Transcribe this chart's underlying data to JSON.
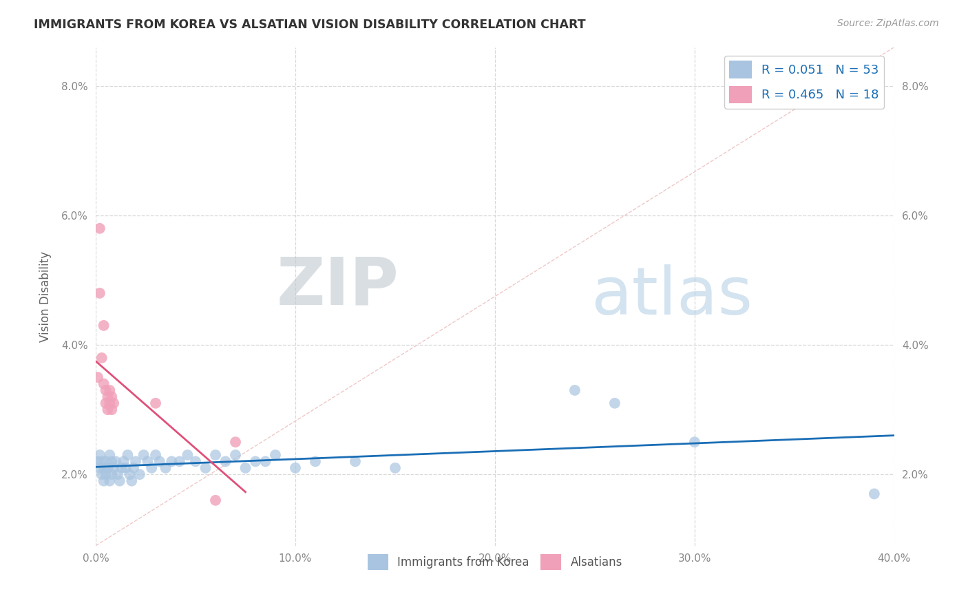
{
  "title": "IMMIGRANTS FROM KOREA VS ALSATIAN VISION DISABILITY CORRELATION CHART",
  "source": "Source: ZipAtlas.com",
  "ylabel": "Vision Disability",
  "xlim": [
    0.0,
    0.4
  ],
  "ylim": [
    0.009,
    0.086
  ],
  "xticks": [
    0.0,
    0.1,
    0.2,
    0.3,
    0.4
  ],
  "yticks": [
    0.02,
    0.04,
    0.06,
    0.08
  ],
  "xticklabels": [
    "0.0%",
    "10.0%",
    "20.0%",
    "30.0%",
    "40.0%"
  ],
  "yticklabels": [
    "2.0%",
    "4.0%",
    "6.0%",
    "8.0%"
  ],
  "blue_points": [
    [
      0.001,
      0.022
    ],
    [
      0.002,
      0.021
    ],
    [
      0.002,
      0.023
    ],
    [
      0.003,
      0.02
    ],
    [
      0.003,
      0.022
    ],
    [
      0.004,
      0.019
    ],
    [
      0.004,
      0.021
    ],
    [
      0.005,
      0.022
    ],
    [
      0.005,
      0.02
    ],
    [
      0.006,
      0.021
    ],
    [
      0.007,
      0.023
    ],
    [
      0.007,
      0.019
    ],
    [
      0.008,
      0.02
    ],
    [
      0.008,
      0.022
    ],
    [
      0.009,
      0.021
    ],
    [
      0.01,
      0.022
    ],
    [
      0.011,
      0.02
    ],
    [
      0.012,
      0.019
    ],
    [
      0.013,
      0.021
    ],
    [
      0.014,
      0.022
    ],
    [
      0.015,
      0.021
    ],
    [
      0.016,
      0.023
    ],
    [
      0.017,
      0.02
    ],
    [
      0.018,
      0.019
    ],
    [
      0.019,
      0.021
    ],
    [
      0.02,
      0.022
    ],
    [
      0.022,
      0.02
    ],
    [
      0.024,
      0.023
    ],
    [
      0.026,
      0.022
    ],
    [
      0.028,
      0.021
    ],
    [
      0.03,
      0.023
    ],
    [
      0.032,
      0.022
    ],
    [
      0.035,
      0.021
    ],
    [
      0.038,
      0.022
    ],
    [
      0.042,
      0.022
    ],
    [
      0.046,
      0.023
    ],
    [
      0.05,
      0.022
    ],
    [
      0.055,
      0.021
    ],
    [
      0.06,
      0.023
    ],
    [
      0.065,
      0.022
    ],
    [
      0.07,
      0.023
    ],
    [
      0.075,
      0.021
    ],
    [
      0.08,
      0.022
    ],
    [
      0.085,
      0.022
    ],
    [
      0.09,
      0.023
    ],
    [
      0.1,
      0.021
    ],
    [
      0.11,
      0.022
    ],
    [
      0.13,
      0.022
    ],
    [
      0.15,
      0.021
    ],
    [
      0.24,
      0.033
    ],
    [
      0.26,
      0.031
    ],
    [
      0.3,
      0.025
    ],
    [
      0.39,
      0.017
    ]
  ],
  "pink_points": [
    [
      0.001,
      0.035
    ],
    [
      0.002,
      0.058
    ],
    [
      0.002,
      0.048
    ],
    [
      0.003,
      0.038
    ],
    [
      0.004,
      0.034
    ],
    [
      0.004,
      0.043
    ],
    [
      0.005,
      0.033
    ],
    [
      0.005,
      0.031
    ],
    [
      0.006,
      0.03
    ],
    [
      0.006,
      0.032
    ],
    [
      0.007,
      0.031
    ],
    [
      0.007,
      0.033
    ],
    [
      0.008,
      0.03
    ],
    [
      0.008,
      0.032
    ],
    [
      0.009,
      0.031
    ],
    [
      0.03,
      0.031
    ],
    [
      0.06,
      0.016
    ],
    [
      0.07,
      0.025
    ]
  ],
  "blue_color": "#a8c4e0",
  "pink_color": "#f0a0b8",
  "blue_line_color": "#1a6eb5",
  "pink_line_color": "#e0507a",
  "trend_line_color": "#d0c0c0",
  "R_blue": 0.051,
  "N_blue": 53,
  "R_pink": 0.465,
  "N_pink": 18,
  "watermark_zip": "ZIP",
  "watermark_atlas": "atlas",
  "background_color": "#ffffff",
  "grid_color": "#d8d8d8"
}
